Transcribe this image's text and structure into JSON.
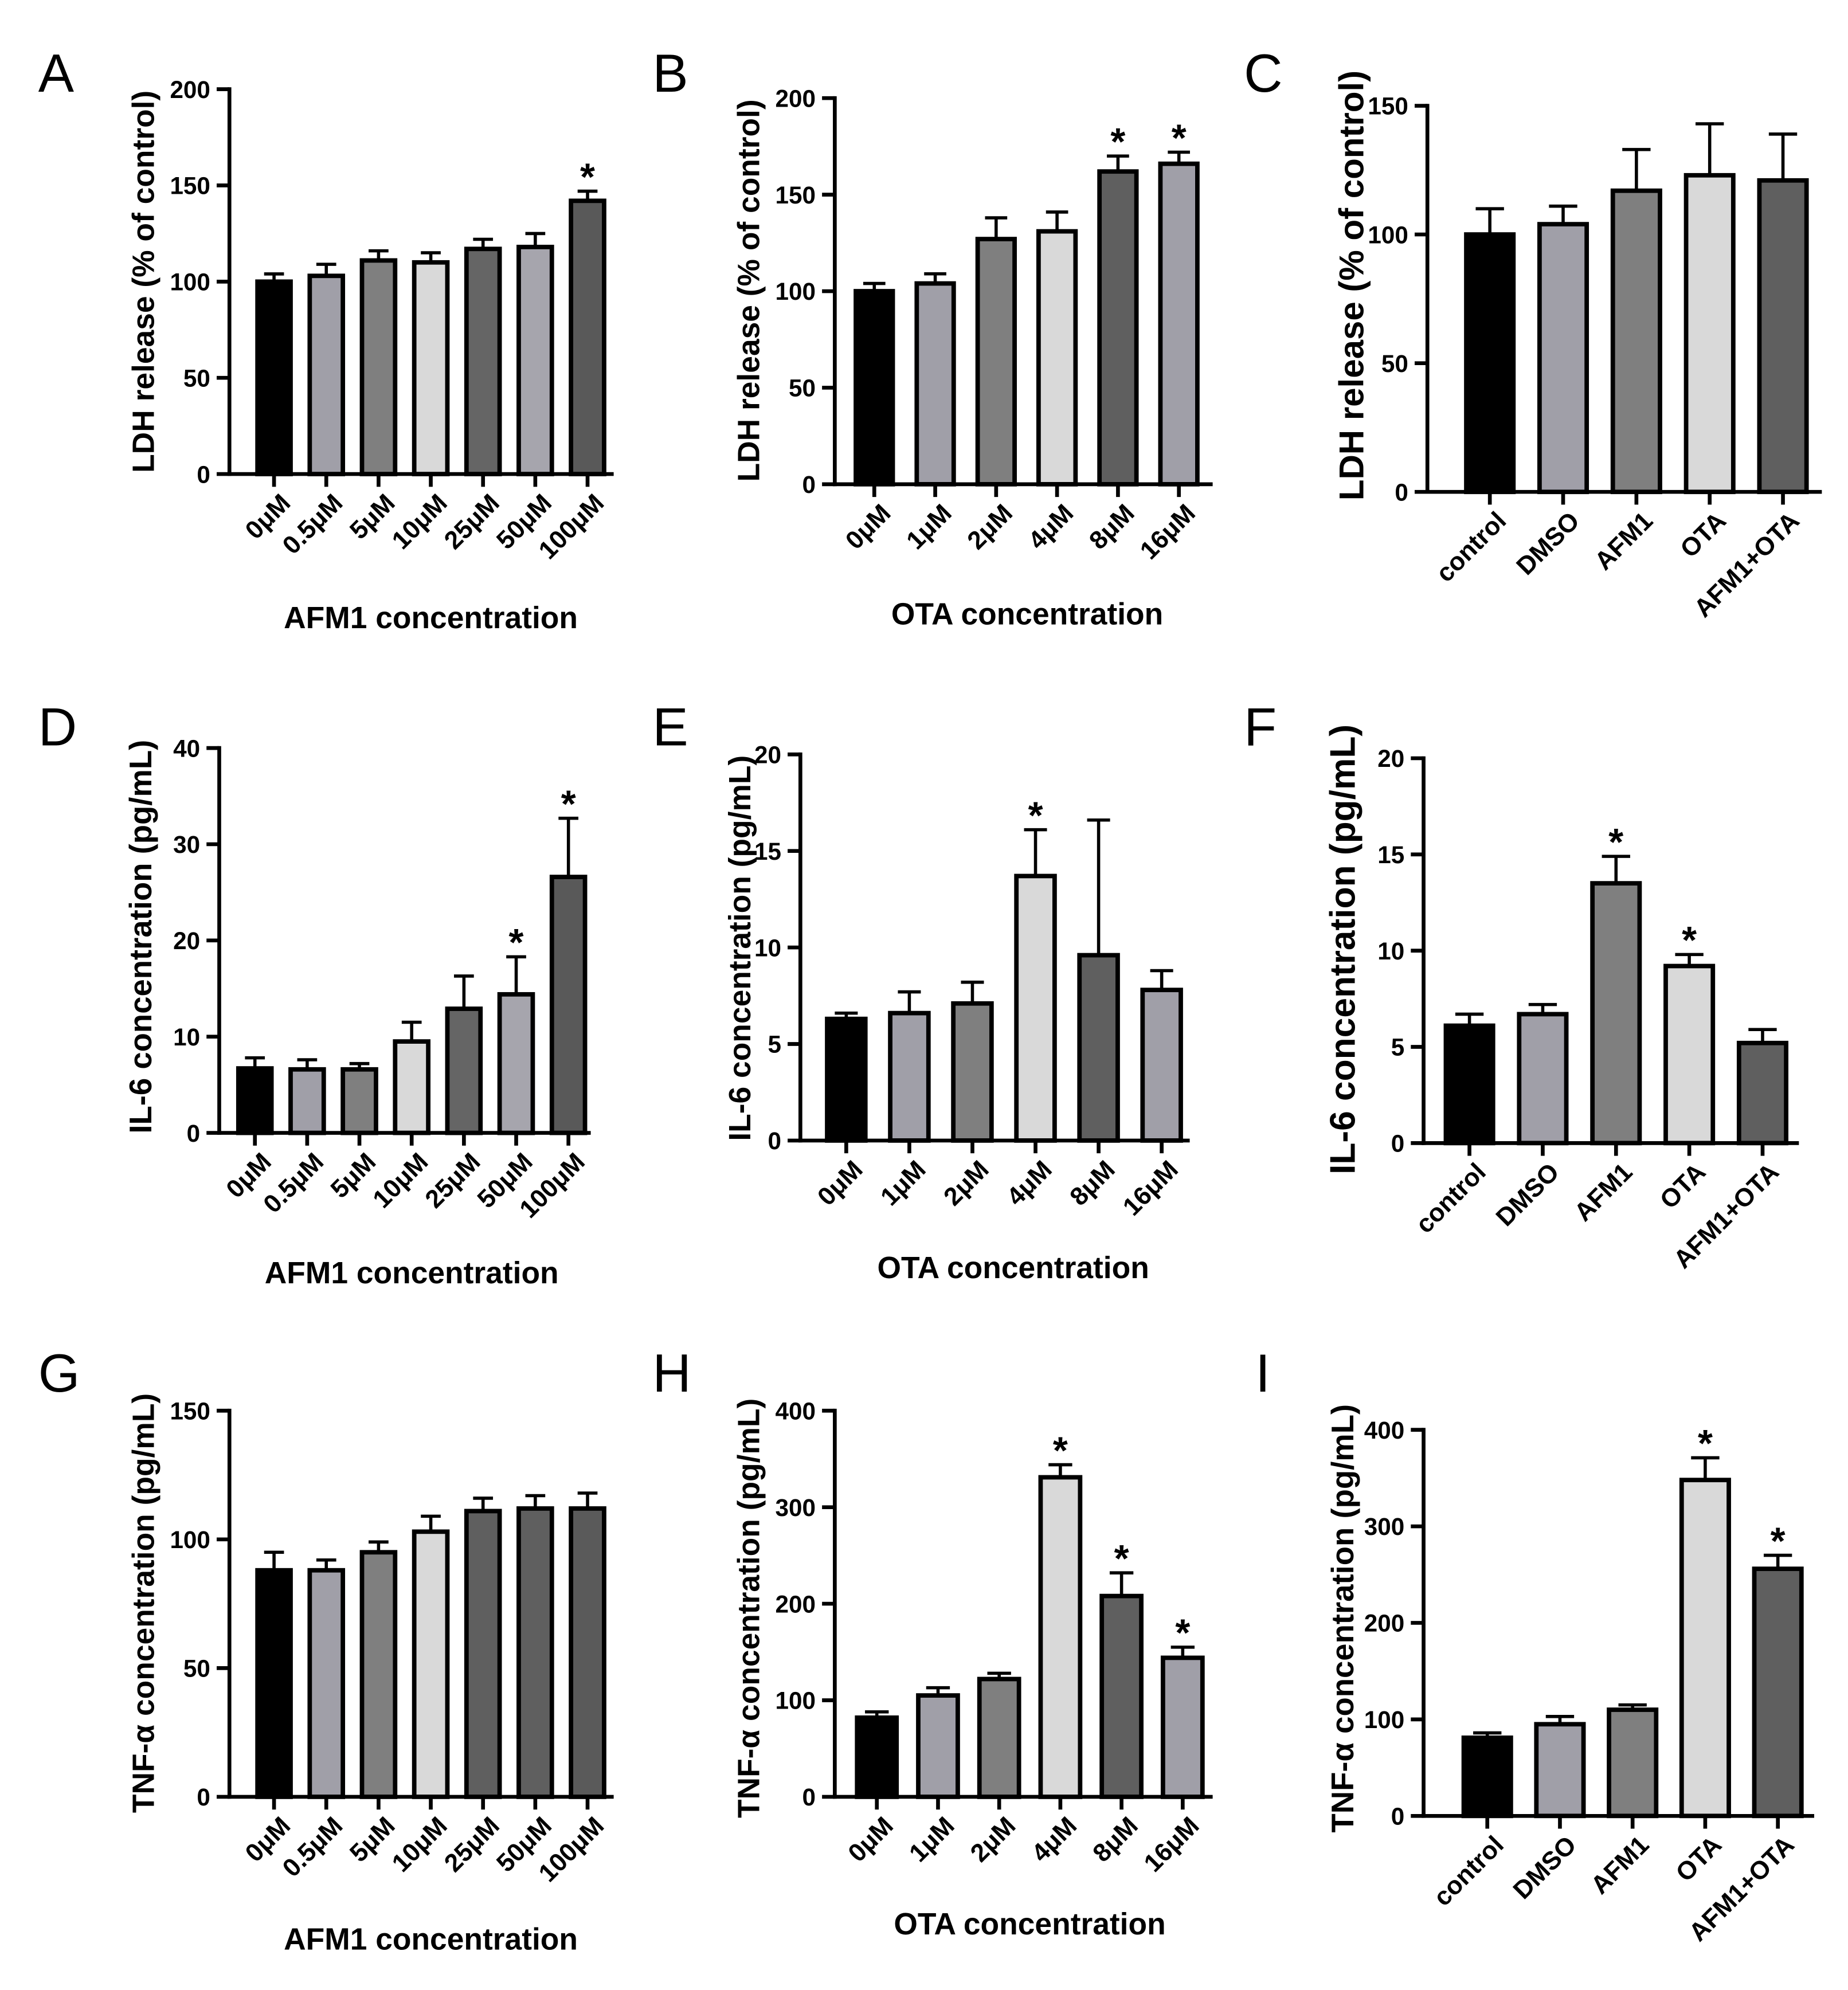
{
  "significance_marker": "*",
  "chart_data": [
    {
      "panel": "A",
      "type": "bar",
      "xlabel": "AFM1 concentration",
      "ylabel": "LDH release (% of control)",
      "ylim": [
        0,
        200
      ],
      "yticks": [
        0,
        50,
        100,
        150,
        200
      ],
      "categories": [
        "0μM",
        "0.5μM",
        "5μM",
        "10μM",
        "25μM",
        "50μM",
        "100μM"
      ],
      "values": [
        100,
        103,
        111,
        110,
        117,
        118,
        142
      ],
      "errors": [
        4,
        6,
        5,
        5,
        5,
        7,
        5
      ],
      "significant": [
        false,
        false,
        false,
        false,
        false,
        false,
        true
      ],
      "colors": [
        "#000000",
        "#a09fa8",
        "#7f7f7f",
        "#d9d9d9",
        "#656565",
        "#a6a5ad",
        "#595959"
      ]
    },
    {
      "panel": "B",
      "type": "bar",
      "xlabel": "OTA concentration",
      "ylabel": "LDH release (% of control)",
      "ylim": [
        0,
        200
      ],
      "yticks": [
        0,
        50,
        100,
        150,
        200
      ],
      "categories": [
        "0μM",
        "1μM",
        "2μM",
        "4μM",
        "8μM",
        "16μM"
      ],
      "values": [
        100,
        104,
        127,
        131,
        162,
        166
      ],
      "errors": [
        4,
        5,
        11,
        10,
        8,
        6
      ],
      "significant": [
        false,
        false,
        false,
        false,
        true,
        true
      ],
      "colors": [
        "#000000",
        "#a09fa8",
        "#7f7f7f",
        "#d9d9d9",
        "#5f5f5f",
        "#a09fa8"
      ]
    },
    {
      "panel": "C",
      "type": "bar",
      "ylabel": "LDH release (% of control)",
      "ylim": [
        0,
        150
      ],
      "yticks": [
        0,
        50,
        100,
        150
      ],
      "categories": [
        "control",
        "DMSO",
        "AFM1",
        "OTA",
        "AFM1+OTA"
      ],
      "values": [
        100,
        104,
        117,
        123,
        121
      ],
      "errors": [
        10,
        7,
        16,
        20,
        18
      ],
      "significant": [
        false,
        false,
        false,
        false,
        false
      ],
      "colors": [
        "#000000",
        "#a09fa8",
        "#7f7f7f",
        "#d9d9d9",
        "#5f5f5f"
      ]
    },
    {
      "panel": "D",
      "type": "bar",
      "xlabel": "AFM1 concentration",
      "ylabel": "IL-6 concentration (pg/mL)",
      "ylim": [
        0,
        40
      ],
      "yticks": [
        0,
        10,
        20,
        30,
        40
      ],
      "categories": [
        "0μM",
        "0.5μM",
        "5μM",
        "10μM",
        "25μM",
        "50μM",
        "100μM"
      ],
      "values": [
        6.7,
        6.6,
        6.6,
        9.5,
        12.9,
        14.4,
        26.6
      ],
      "errors": [
        1.1,
        1.0,
        0.6,
        2.0,
        3.4,
        3.9,
        6.1
      ],
      "significant": [
        false,
        false,
        false,
        false,
        false,
        true,
        true
      ],
      "colors": [
        "#000000",
        "#a09fa8",
        "#7f7f7f",
        "#d9d9d9",
        "#656565",
        "#a6a5ad",
        "#595959"
      ]
    },
    {
      "panel": "E",
      "type": "bar",
      "xlabel": "OTA concentration",
      "ylabel": "IL-6 concentration (pg/mL)",
      "ylim": [
        0,
        20
      ],
      "yticks": [
        0,
        5,
        10,
        15,
        20
      ],
      "categories": [
        "0μM",
        "1μM",
        "2μM",
        "4μM",
        "8μM",
        "16μM"
      ],
      "values": [
        6.3,
        6.6,
        7.1,
        13.7,
        9.6,
        7.8
      ],
      "errors": [
        0.3,
        1.1,
        1.1,
        2.4,
        7.0,
        1.0
      ],
      "significant": [
        false,
        false,
        false,
        true,
        false,
        false
      ],
      "colors": [
        "#000000",
        "#a09fa8",
        "#7f7f7f",
        "#d9d9d9",
        "#5f5f5f",
        "#a09fa8"
      ]
    },
    {
      "panel": "F",
      "type": "bar",
      "ylabel": "IL-6 concentration (pg/mL)",
      "ylim": [
        0,
        20
      ],
      "yticks": [
        0,
        5,
        10,
        15,
        20
      ],
      "categories": [
        "control",
        "DMSO",
        "AFM1",
        "OTA",
        "AFM1+OTA"
      ],
      "values": [
        6.1,
        6.7,
        13.5,
        9.2,
        5.2
      ],
      "errors": [
        0.6,
        0.5,
        1.4,
        0.6,
        0.7
      ],
      "significant": [
        false,
        false,
        true,
        true,
        false
      ],
      "colors": [
        "#000000",
        "#a09fa8",
        "#7f7f7f",
        "#d9d9d9",
        "#5f5f5f"
      ]
    },
    {
      "panel": "G",
      "type": "bar",
      "xlabel": "AFM1 concentration",
      "ylabel": "TNF-α concentration (pg/mL)",
      "ylim": [
        0,
        150
      ],
      "yticks": [
        0,
        50,
        100,
        150
      ],
      "categories": [
        "0μM",
        "0.5μM",
        "5μM",
        "10μM",
        "25μM",
        "50μM",
        "100μM"
      ],
      "values": [
        88,
        88,
        95,
        103,
        111,
        112,
        112
      ],
      "errors": [
        7,
        4,
        4,
        6,
        5,
        5,
        6
      ],
      "significant": [
        false,
        false,
        false,
        false,
        false,
        false,
        false
      ],
      "colors": [
        "#000000",
        "#a09fa8",
        "#7f7f7f",
        "#d9d9d9",
        "#5f5f5f",
        "#5f5f5f",
        "#5a5a5a"
      ]
    },
    {
      "panel": "H",
      "type": "bar",
      "xlabel": "OTA concentration",
      "ylabel": "TNF-α concentration (pg/mL)",
      "ylim": [
        0,
        400
      ],
      "yticks": [
        0,
        100,
        200,
        300,
        400
      ],
      "categories": [
        "0μM",
        "1μM",
        "2μM",
        "4μM",
        "8μM",
        "16μM"
      ],
      "values": [
        82,
        105,
        122,
        331,
        208,
        144
      ],
      "errors": [
        6,
        8,
        6,
        13,
        24,
        11
      ],
      "significant": [
        false,
        false,
        false,
        true,
        true,
        true
      ],
      "colors": [
        "#000000",
        "#a09fa8",
        "#7f7f7f",
        "#d9d9d9",
        "#5f5f5f",
        "#a09fa8"
      ]
    },
    {
      "panel": "I",
      "type": "bar",
      "ylabel": "TNF-α concentration (pg/mL)",
      "ylim": [
        0,
        400
      ],
      "yticks": [
        0,
        100,
        200,
        300,
        400
      ],
      "categories": [
        "control",
        "DMSO",
        "AFM1",
        "OTA",
        "AFM1+OTA"
      ],
      "values": [
        81,
        95,
        110,
        348,
        256
      ],
      "errors": [
        5,
        8,
        5,
        23,
        14
      ],
      "significant": [
        false,
        false,
        false,
        true,
        true
      ],
      "colors": [
        "#000000",
        "#a09fa8",
        "#7f7f7f",
        "#d9d9d9",
        "#5f5f5f"
      ]
    }
  ]
}
